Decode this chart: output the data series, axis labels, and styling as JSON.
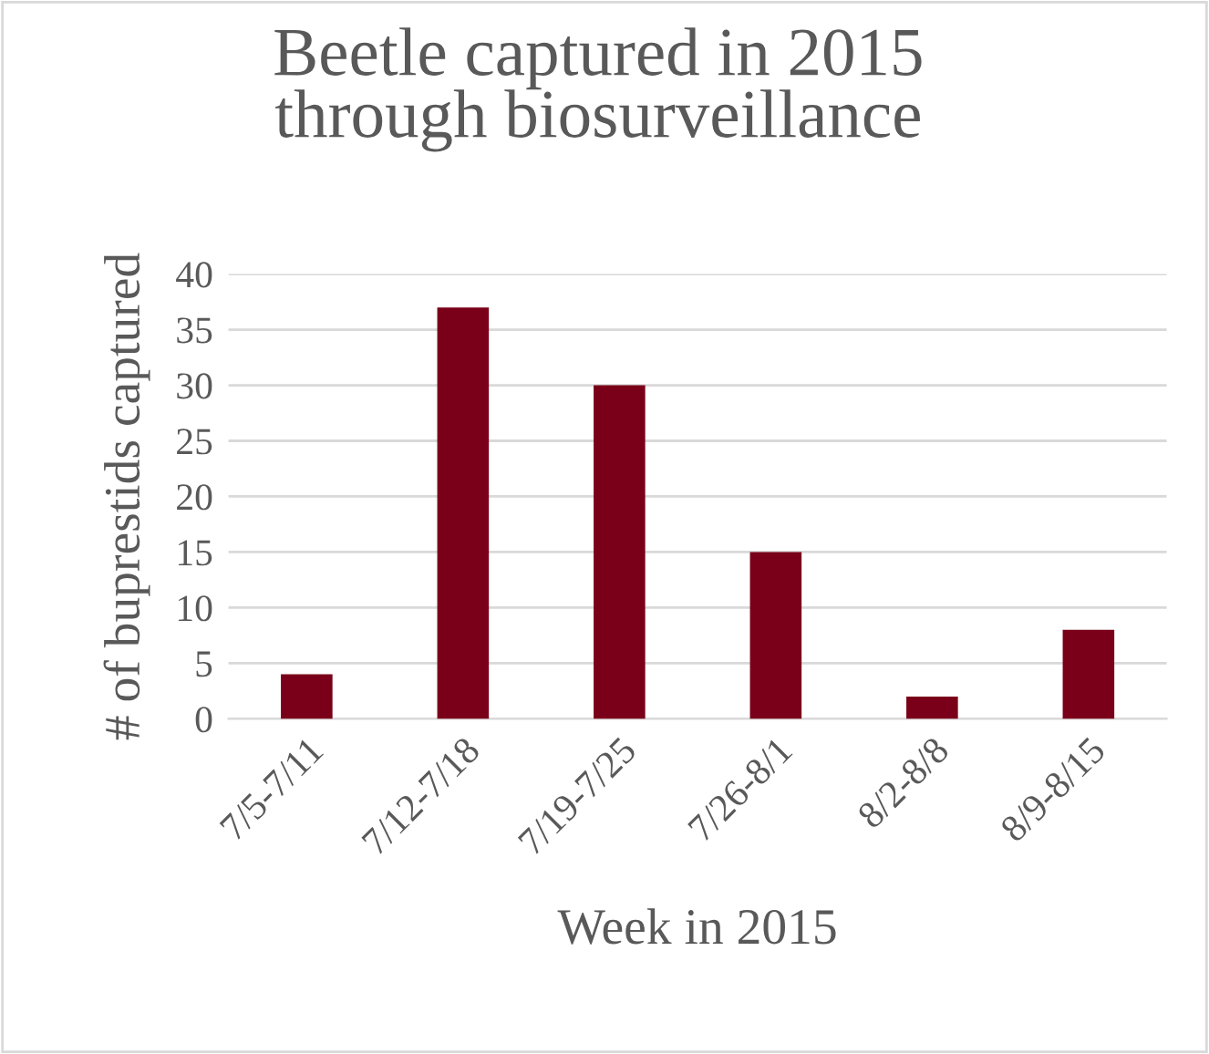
{
  "chart_data": {
    "type": "bar",
    "title": "Beetle captured in 2015\nthrough biosurveillance",
    "xlabel": "Week in 2015",
    "ylabel": "# of buprestids captured",
    "categories": [
      "7/5-7/11",
      "7/12-7/18",
      "7/19-7/25",
      "7/26-8/1",
      "8/2-8/8",
      "8/9-8/15"
    ],
    "values": [
      4,
      37,
      30,
      15,
      2,
      8
    ],
    "color": "#7a0019",
    "ylim": [
      0,
      40
    ],
    "yticks": [
      0,
      5,
      10,
      15,
      20,
      25,
      30,
      35,
      40
    ],
    "grid": "y",
    "legend": false
  }
}
